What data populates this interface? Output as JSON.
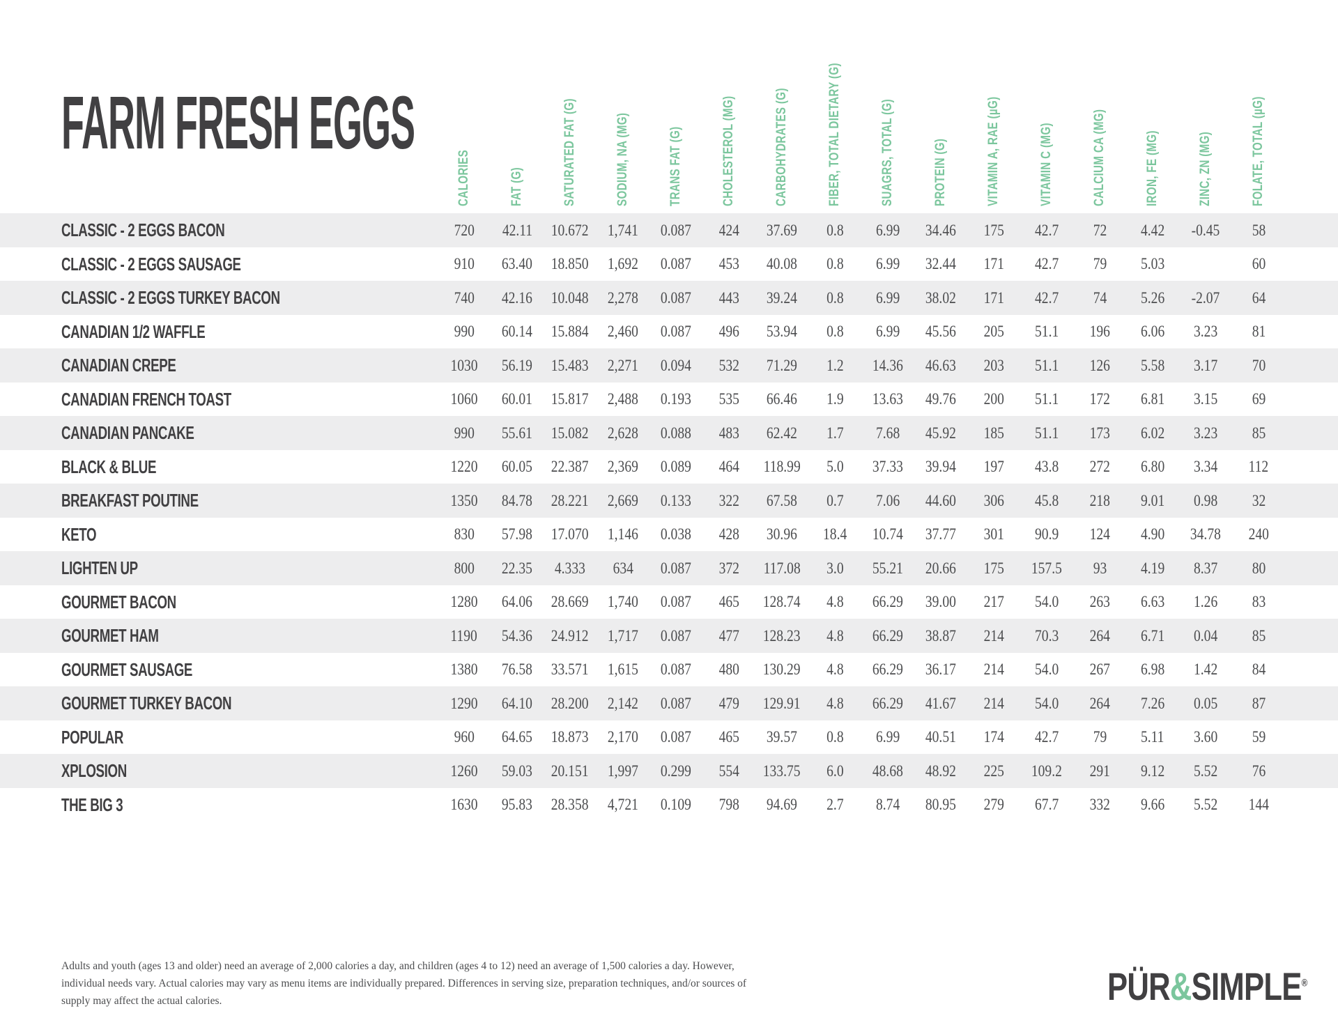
{
  "title": "FARM FRESH EGGS",
  "table": {
    "columns": [
      "CALORIES",
      "FAT (G)",
      "SATURATED FAT (G)",
      "SODIUM, NA (MG)",
      "TRANS FAT (G)",
      "CHOLESTEROL (MG)",
      "CARBOHYDRATES (G)",
      "FIBER, TOTAL DIETARY (G)",
      "SUAGRS, TOTAL (G)",
      "PROTEIN (G)",
      "VITAMIN A, RAE (µG)",
      "VITAMIN C (MG)",
      "CALCIUM CA (MG)",
      "IRON, FE (MG)",
      "ZINC, ZN (MG)",
      "FOLATE, TOTAL (µG)"
    ],
    "rows": [
      {
        "name": "CLASSIC - 2 EGGS BACON",
        "values": [
          "720",
          "42.11",
          "10.672",
          "1,741",
          "0.087",
          "424",
          "37.69",
          "0.8",
          "6.99",
          "34.46",
          "175",
          "42.7",
          "72",
          "4.42",
          "-0.45",
          "58"
        ]
      },
      {
        "name": "CLASSIC - 2 EGGS SAUSAGE",
        "values": [
          "910",
          "63.40",
          "18.850",
          "1,692",
          "0.087",
          "453",
          "40.08",
          "0.8",
          "6.99",
          "32.44",
          "171",
          "42.7",
          "79",
          "5.03",
          "",
          "60"
        ]
      },
      {
        "name": "CLASSIC - 2 EGGS TURKEY BACON",
        "values": [
          "740",
          "42.16",
          "10.048",
          "2,278",
          "0.087",
          "443",
          "39.24",
          "0.8",
          "6.99",
          "38.02",
          "171",
          "42.7",
          "74",
          "5.26",
          "-2.07",
          "64"
        ]
      },
      {
        "name": "CANADIAN 1/2 WAFFLE",
        "values": [
          "990",
          "60.14",
          "15.884",
          "2,460",
          "0.087",
          "496",
          "53.94",
          "0.8",
          "6.99",
          "45.56",
          "205",
          "51.1",
          "196",
          "6.06",
          "3.23",
          "81"
        ]
      },
      {
        "name": "CANADIAN CREPE",
        "values": [
          "1030",
          "56.19",
          "15.483",
          "2,271",
          "0.094",
          "532",
          "71.29",
          "1.2",
          "14.36",
          "46.63",
          "203",
          "51.1",
          "126",
          "5.58",
          "3.17",
          "70"
        ]
      },
      {
        "name": "CANADIAN FRENCH TOAST",
        "values": [
          "1060",
          "60.01",
          "15.817",
          "2,488",
          "0.193",
          "535",
          "66.46",
          "1.9",
          "13.63",
          "49.76",
          "200",
          "51.1",
          "172",
          "6.81",
          "3.15",
          "69"
        ]
      },
      {
        "name": "CANADIAN PANCAKE",
        "values": [
          "990",
          "55.61",
          "15.082",
          "2,628",
          "0.088",
          "483",
          "62.42",
          "1.7",
          "7.68",
          "45.92",
          "185",
          "51.1",
          "173",
          "6.02",
          "3.23",
          "85"
        ]
      },
      {
        "name": "BLACK & BLUE",
        "values": [
          "1220",
          "60.05",
          "22.387",
          "2,369",
          "0.089",
          "464",
          "118.99",
          "5.0",
          "37.33",
          "39.94",
          "197",
          "43.8",
          "272",
          "6.80",
          "3.34",
          "112"
        ]
      },
      {
        "name": "BREAKFAST POUTINE",
        "values": [
          "1350",
          "84.78",
          "28.221",
          "2,669",
          "0.133",
          "322",
          "67.58",
          "0.7",
          "7.06",
          "44.60",
          "306",
          "45.8",
          "218",
          "9.01",
          "0.98",
          "32"
        ]
      },
      {
        "name": "KETO",
        "values": [
          "830",
          "57.98",
          "17.070",
          "1,146",
          "0.038",
          "428",
          "30.96",
          "18.4",
          "10.74",
          "37.77",
          "301",
          "90.9",
          "124",
          "4.90",
          "34.78",
          "240"
        ]
      },
      {
        "name": "LIGHTEN UP",
        "values": [
          "800",
          "22.35",
          "4.333",
          "634",
          "0.087",
          "372",
          "117.08",
          "3.0",
          "55.21",
          "20.66",
          "175",
          "157.5",
          "93",
          "4.19",
          "8.37",
          "80"
        ]
      },
      {
        "name": "GOURMET BACON",
        "values": [
          "1280",
          "64.06",
          "28.669",
          "1,740",
          "0.087",
          "465",
          "128.74",
          "4.8",
          "66.29",
          "39.00",
          "217",
          "54.0",
          "263",
          "6.63",
          "1.26",
          "83"
        ]
      },
      {
        "name": "GOURMET HAM",
        "values": [
          "1190",
          "54.36",
          "24.912",
          "1,717",
          "0.087",
          "477",
          "128.23",
          "4.8",
          "66.29",
          "38.87",
          "214",
          "70.3",
          "264",
          "6.71",
          "0.04",
          "85"
        ]
      },
      {
        "name": "GOURMET SAUSAGE",
        "values": [
          "1380",
          "76.58",
          "33.571",
          "1,615",
          "0.087",
          "480",
          "130.29",
          "4.8",
          "66.29",
          "36.17",
          "214",
          "54.0",
          "267",
          "6.98",
          "1.42",
          "84"
        ]
      },
      {
        "name": "GOURMET TURKEY BACON",
        "values": [
          "1290",
          "64.10",
          "28.200",
          "2,142",
          "0.087",
          "479",
          "129.91",
          "4.8",
          "66.29",
          "41.67",
          "214",
          "54.0",
          "264",
          "7.26",
          "0.05",
          "87"
        ]
      },
      {
        "name": "POPULAR",
        "values": [
          "960",
          "64.65",
          "18.873",
          "2,170",
          "0.087",
          "465",
          "39.57",
          "0.8",
          "6.99",
          "40.51",
          "174",
          "42.7",
          "79",
          "5.11",
          "3.60",
          "59"
        ]
      },
      {
        "name": "XPLOSION",
        "values": [
          "1260",
          "59.03",
          "20.151",
          "1,997",
          "0.299",
          "554",
          "133.75",
          "6.0",
          "48.68",
          "48.92",
          "225",
          "109.2",
          "291",
          "9.12",
          "5.52",
          "76"
        ]
      },
      {
        "name": "THE BIG 3",
        "values": [
          "1630",
          "95.83",
          "28.358",
          "4,721",
          "0.109",
          "798",
          "94.69",
          "2.7",
          "8.74",
          "80.95",
          "279",
          "67.7",
          "332",
          "9.66",
          "5.52",
          "144"
        ]
      }
    ]
  },
  "footer": {
    "disclaimer": "Adults and youth (ages 13 and older) need an average of 2,000 calories a day, and children (ages 4 to 12) need an average of 1,500 calories a day. However, individual needs vary. Actual calories may vary as menu items are individually prepared. Differences in serving size, preparation techniques, and/or sources of supply may affect the actual calories.",
    "logo": {
      "part1": "PÜR",
      "amp": "&",
      "part2": "SIMPLE",
      "reg": "®"
    }
  },
  "colors": {
    "accent_green": "#7bc69d",
    "dark": "#414042",
    "stripe": "#ededee",
    "number_text": "#4c4d4f"
  }
}
